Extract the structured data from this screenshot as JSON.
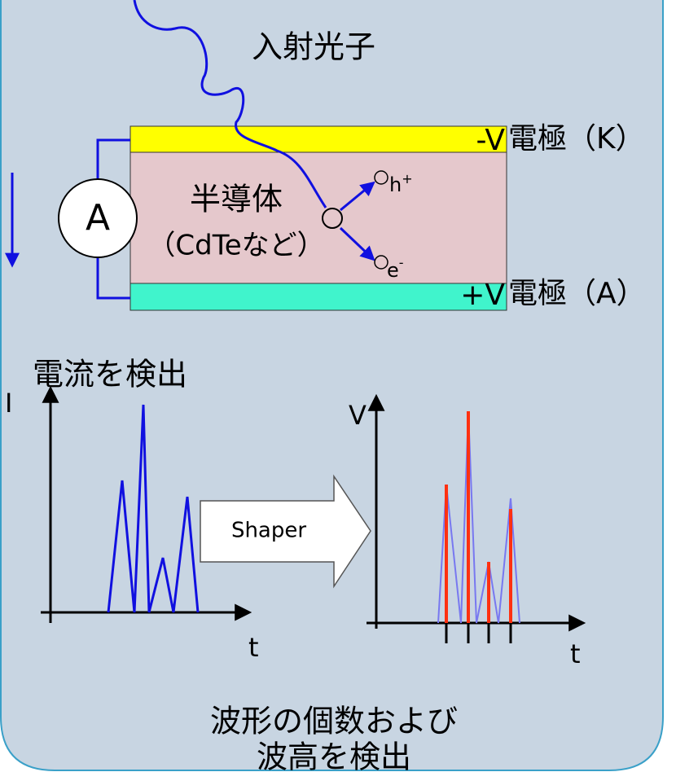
{
  "labels": {
    "photon": "入射光子",
    "cathode_voltage": "-V",
    "cathode": "電極（K）",
    "semiconductor": "半導体",
    "material": "（CdTeなど）",
    "hole": {
      "symbol": "h",
      "sup": "+"
    },
    "electron": {
      "symbol": "e",
      "sup": "-"
    },
    "ammeter": "A",
    "anode_voltage": "+V",
    "anode": "電極（A）",
    "detect_current": "電流を検出",
    "current_axis": "I",
    "time_axis_1": "t",
    "shaper": "Shaper",
    "voltage_axis": "V",
    "time_axis_2": "t",
    "result_line_1": "波形の個数および",
    "result_line_2": "波高を検出"
  }
}
